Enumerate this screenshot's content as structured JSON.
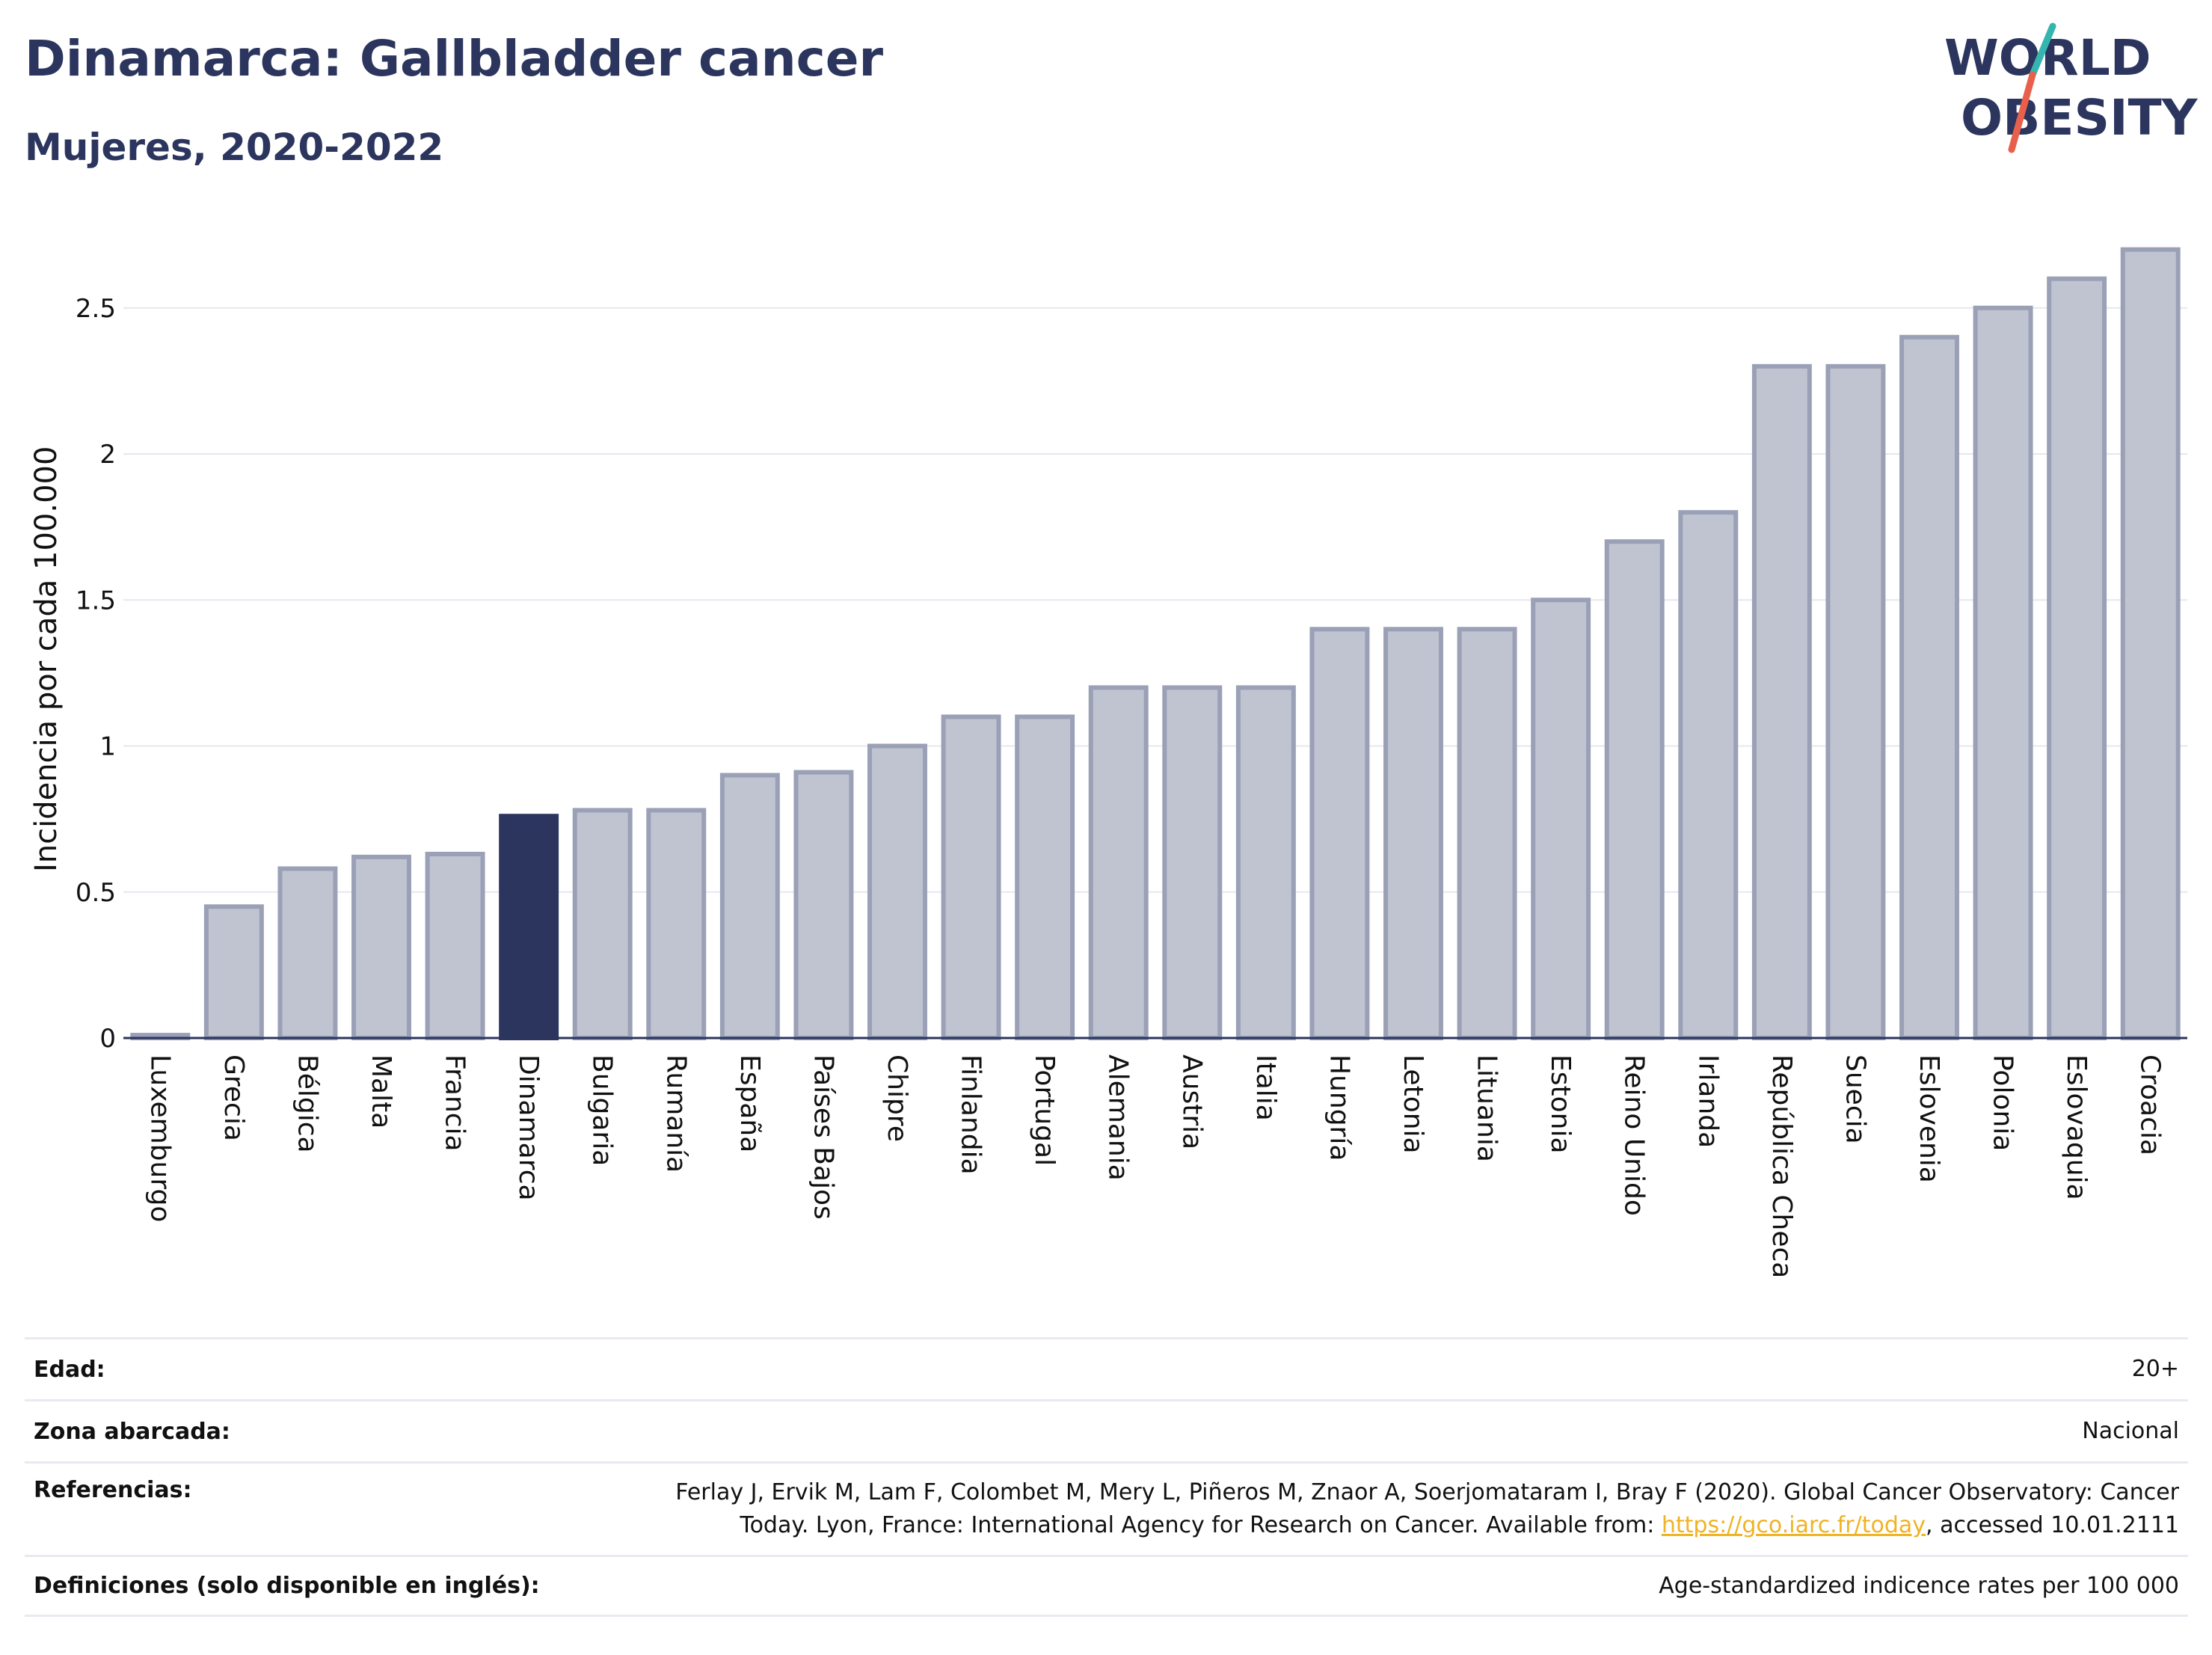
{
  "header": {
    "title": "Dinamarca: Gallbladder cancer",
    "subtitle": "Mujeres, 2020-2022"
  },
  "logo": {
    "line1": "WORLD",
    "line2": "OBESITY"
  },
  "chart_data": {
    "type": "bar",
    "ylabel": "Incidencia por cada 100.000",
    "ylim": [
      0,
      2.8
    ],
    "yticks": [
      0,
      0.5,
      1,
      1.5,
      2,
      2.5
    ],
    "ytick_labels": [
      "0",
      "0.5",
      "1",
      "1.5",
      "2",
      "2.5"
    ],
    "grid": true,
    "highlight": "Dinamarca",
    "colors": {
      "bar": "#c0c3d0",
      "bar_edge": "#9aa0b6",
      "highlight": "#2b355e",
      "grid": "#e6e8ef"
    },
    "categories": [
      "Luxemburgo",
      "Grecia",
      "Bélgica",
      "Malta",
      "Francia",
      "Dinamarca",
      "Bulgaria",
      "Rumanía",
      "España",
      "Países Bajos",
      "Chipre",
      "Finlandia",
      "Portugal",
      "Alemania",
      "Austria",
      "Italia",
      "Hungría",
      "Letonia",
      "Lituania",
      "Estonia",
      "Reino Unido",
      "Irlanda",
      "República Checa",
      "Suecia",
      "Eslovenia",
      "Polonia",
      "Eslovaquia",
      "Croacia"
    ],
    "values": [
      0.01,
      0.45,
      0.58,
      0.62,
      0.63,
      0.76,
      0.78,
      0.78,
      0.9,
      0.91,
      1.0,
      1.1,
      1.1,
      1.2,
      1.2,
      1.2,
      1.4,
      1.4,
      1.4,
      1.5,
      1.7,
      1.8,
      2.3,
      2.3,
      2.4,
      2.5,
      2.6,
      2.7
    ]
  },
  "meta": {
    "age_label": "Edad:",
    "age_value": "20+",
    "area_label": "Zona abarcada:",
    "area_value": "Nacional",
    "refs_label": "Referencias:",
    "refs_line1": "Ferlay J, Ervik M, Lam F, Colombet M, Mery L, Piñeros M, Znaor A, Soerjomataram I, Bray F (2020). Global Cancer Observatory: Cancer",
    "refs_line2_pre": "Today. Lyon, France: International Agency for Research on Cancer. Available from: ",
    "refs_link": "https://gco.iarc.fr/today",
    "refs_line2_post": ", accessed 10.01.2111",
    "defs_label": "Definiciones (solo disponible en inglés):",
    "defs_value": "Age-standardized indicence rates per 100 000"
  }
}
